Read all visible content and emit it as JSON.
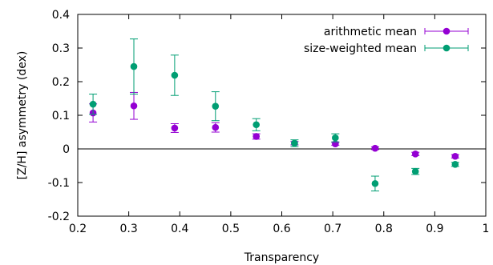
{
  "chart_data": {
    "type": "scatter",
    "title": "",
    "xlabel": "Transparency",
    "ylabel": "[Z/H] asymmetry (dex)",
    "xlim": [
      0.2,
      1.0
    ],
    "ylim": [
      -0.2,
      0.4
    ],
    "xticks": [
      0.2,
      0.3,
      0.4,
      0.5,
      0.6,
      0.7,
      0.8,
      0.9,
      1.0
    ],
    "xtick_labels": [
      "0.2",
      "0.3",
      "0.4",
      "0.5",
      "0.6",
      "0.7",
      "0.8",
      "0.9",
      "1"
    ],
    "yticks": [
      -0.2,
      -0.1,
      0,
      0.1,
      0.2,
      0.3,
      0.4
    ],
    "ytick_labels": [
      "-0.2",
      "-0.1",
      "0",
      "0.1",
      "0.2",
      "0.3",
      "0.4"
    ],
    "zero_line": true,
    "grid": false,
    "legend_position": "top-right",
    "series": [
      {
        "name": "arithmetic mean",
        "color": "#9400d3",
        "x": [
          0.23,
          0.31,
          0.39,
          0.47,
          0.55,
          0.625,
          0.705,
          0.783,
          0.862,
          0.94
        ],
        "y": [
          0.107,
          0.128,
          0.062,
          0.064,
          0.037,
          0.017,
          0.015,
          0.002,
          -0.015,
          -0.022
        ],
        "err": [
          0.027,
          0.04,
          0.013,
          0.014,
          0.008,
          0.005,
          0.004,
          0.004,
          0.005,
          0.005
        ]
      },
      {
        "name": "size-weighted mean",
        "color": "#009e73",
        "x": [
          0.23,
          0.31,
          0.39,
          0.47,
          0.55,
          0.625,
          0.705,
          0.783,
          0.862,
          0.94
        ],
        "y": [
          0.133,
          0.245,
          0.219,
          0.127,
          0.072,
          0.017,
          0.033,
          -0.103,
          -0.067,
          -0.046
        ],
        "err": [
          0.03,
          0.082,
          0.06,
          0.043,
          0.018,
          0.01,
          0.012,
          0.022,
          0.009,
          0.006
        ]
      }
    ]
  }
}
